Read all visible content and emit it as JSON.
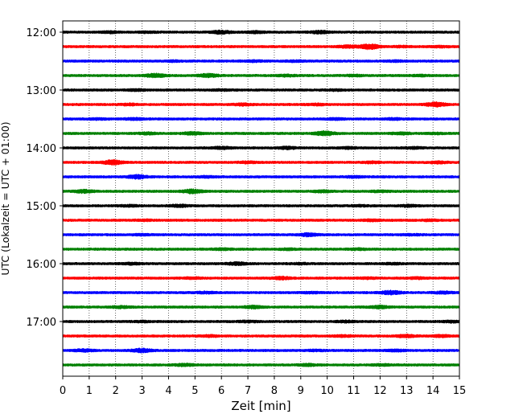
{
  "chart_data": {
    "type": "line",
    "title": "",
    "xlabel": "Zeit  [min]",
    "ylabel": "UTC (Lokalzeit = UTC + 01:00)",
    "xlim": [
      0,
      15
    ],
    "x_ticks": [
      "0",
      "1",
      "2",
      "3",
      "4",
      "5",
      "6",
      "7",
      "8",
      "9",
      "10",
      "11",
      "12",
      "13",
      "14",
      "15"
    ],
    "y_ticks": [
      "12:00",
      "13:00",
      "14:00",
      "15:00",
      "16:00",
      "17:00"
    ],
    "grid": "vertical dotted lines at each minute",
    "trace_interval_minutes": 15,
    "trace_start": "12:00",
    "trace_end": "17:45",
    "trace_color_cycle": [
      "#000000",
      "#ff0000",
      "#0000ff",
      "#008000"
    ],
    "series": [
      {
        "start": "12:00",
        "color": "#000000",
        "events": [
          [
            1.8,
            1.4
          ],
          [
            3.2,
            1.3
          ],
          [
            6.0,
            1.9
          ],
          [
            7.3,
            1.5
          ],
          [
            9.7,
            1.7
          ]
        ]
      },
      {
        "start": "12:15",
        "color": "#ff0000",
        "events": [
          [
            10.8,
            1.6
          ],
          [
            11.6,
            2.4
          ],
          [
            12.8,
            1.3
          ],
          [
            14.3,
            1.3
          ]
        ]
      },
      {
        "start": "12:30",
        "color": "#0000ff",
        "events": [
          [
            4.2,
            1.3
          ],
          [
            7.2,
            1.4
          ],
          [
            8.8,
            1.3
          ],
          [
            12.6,
            1.3
          ]
        ]
      },
      {
        "start": "12:45",
        "color": "#008000",
        "events": [
          [
            3.5,
            2.0
          ],
          [
            5.5,
            1.9
          ],
          [
            8.5,
            1.4
          ],
          [
            11.0,
            1.4
          ],
          [
            13.5,
            1.3
          ]
        ]
      },
      {
        "start": "13:00",
        "color": "#000000",
        "events": [
          [
            2.8,
            1.4
          ],
          [
            6.0,
            1.3
          ],
          [
            10.3,
            1.3
          ]
        ]
      },
      {
        "start": "13:15",
        "color": "#ff0000",
        "events": [
          [
            2.5,
            1.4
          ],
          [
            6.8,
            1.5
          ],
          [
            9.6,
            1.4
          ],
          [
            14.1,
            2.2
          ]
        ]
      },
      {
        "start": "13:30",
        "color": "#0000ff",
        "events": [
          [
            1.3,
            1.3
          ],
          [
            2.7,
            1.5
          ],
          [
            10.3,
            1.4
          ],
          [
            12.5,
            1.4
          ]
        ]
      },
      {
        "start": "13:45",
        "color": "#008000",
        "events": [
          [
            3.2,
            1.5
          ],
          [
            4.9,
            1.7
          ],
          [
            9.9,
            2.2
          ],
          [
            12.8,
            1.5
          ],
          [
            14.1,
            1.3
          ]
        ]
      },
      {
        "start": "14:00",
        "color": "#000000",
        "events": [
          [
            6.0,
            1.6
          ],
          [
            8.5,
            1.6
          ],
          [
            10.8,
            1.4
          ],
          [
            13.3,
            1.4
          ]
        ]
      },
      {
        "start": "14:15",
        "color": "#ff0000",
        "events": [
          [
            1.9,
            2.3
          ],
          [
            7.0,
            1.4
          ],
          [
            11.7,
            1.4
          ],
          [
            14.2,
            1.5
          ]
        ]
      },
      {
        "start": "14:30",
        "color": "#0000ff",
        "events": [
          [
            2.8,
            2.0
          ],
          [
            5.4,
            1.4
          ],
          [
            11.0,
            1.4
          ]
        ]
      },
      {
        "start": "14:45",
        "color": "#008000",
        "events": [
          [
            0.8,
            1.8
          ],
          [
            4.9,
            2.1
          ],
          [
            9.8,
            1.5
          ],
          [
            12.0,
            1.4
          ]
        ]
      },
      {
        "start": "15:00",
        "color": "#000000",
        "events": [
          [
            2.5,
            1.4
          ],
          [
            4.4,
            1.6
          ],
          [
            11.2,
            1.3
          ],
          [
            13.1,
            1.5
          ]
        ]
      },
      {
        "start": "15:15",
        "color": "#ff0000",
        "events": [
          [
            3.1,
            1.3
          ],
          [
            11.7,
            1.4
          ],
          [
            13.9,
            1.3
          ]
        ]
      },
      {
        "start": "15:30",
        "color": "#0000ff",
        "events": [
          [
            3.0,
            1.3
          ],
          [
            9.3,
            1.8
          ],
          [
            13.2,
            1.3
          ]
        ]
      },
      {
        "start": "15:45",
        "color": "#008000",
        "events": [
          [
            6.0,
            1.4
          ],
          [
            8.5,
            1.4
          ],
          [
            11.2,
            1.4
          ]
        ]
      },
      {
        "start": "16:00",
        "color": "#000000",
        "events": [
          [
            2.6,
            1.4
          ],
          [
            6.6,
            1.7
          ],
          [
            9.0,
            1.3
          ],
          [
            12.5,
            1.3
          ]
        ]
      },
      {
        "start": "16:15",
        "color": "#ff0000",
        "events": [
          [
            4.9,
            1.4
          ],
          [
            8.3,
            1.7
          ],
          [
            11.5,
            1.3
          ],
          [
            13.4,
            1.4
          ]
        ]
      },
      {
        "start": "16:30",
        "color": "#0000ff",
        "events": [
          [
            5.4,
            1.4
          ],
          [
            9.4,
            1.3
          ],
          [
            12.4,
            2.0
          ],
          [
            14.4,
            1.5
          ]
        ]
      },
      {
        "start": "16:45",
        "color": "#008000",
        "events": [
          [
            2.2,
            1.5
          ],
          [
            7.2,
            1.7
          ],
          [
            12.0,
            1.7
          ]
        ]
      },
      {
        "start": "17:00",
        "color": "#000000",
        "events": [
          [
            3.0,
            1.3
          ],
          [
            7.0,
            1.4
          ],
          [
            10.7,
            1.4
          ],
          [
            14.7,
            1.4
          ]
        ]
      },
      {
        "start": "17:15",
        "color": "#ff0000",
        "events": [
          [
            5.6,
            1.4
          ],
          [
            10.6,
            1.4
          ],
          [
            13.0,
            1.7
          ],
          [
            14.3,
            1.5
          ]
        ]
      },
      {
        "start": "17:30",
        "color": "#0000ff",
        "events": [
          [
            0.8,
            1.6
          ],
          [
            3.0,
            2.0
          ],
          [
            9.6,
            1.3
          ],
          [
            12.6,
            1.4
          ]
        ]
      },
      {
        "start": "17:45",
        "color": "#008000",
        "events": [
          [
            4.6,
            1.6
          ],
          [
            9.3,
            1.5
          ],
          [
            12.1,
            1.4
          ]
        ]
      }
    ]
  }
}
